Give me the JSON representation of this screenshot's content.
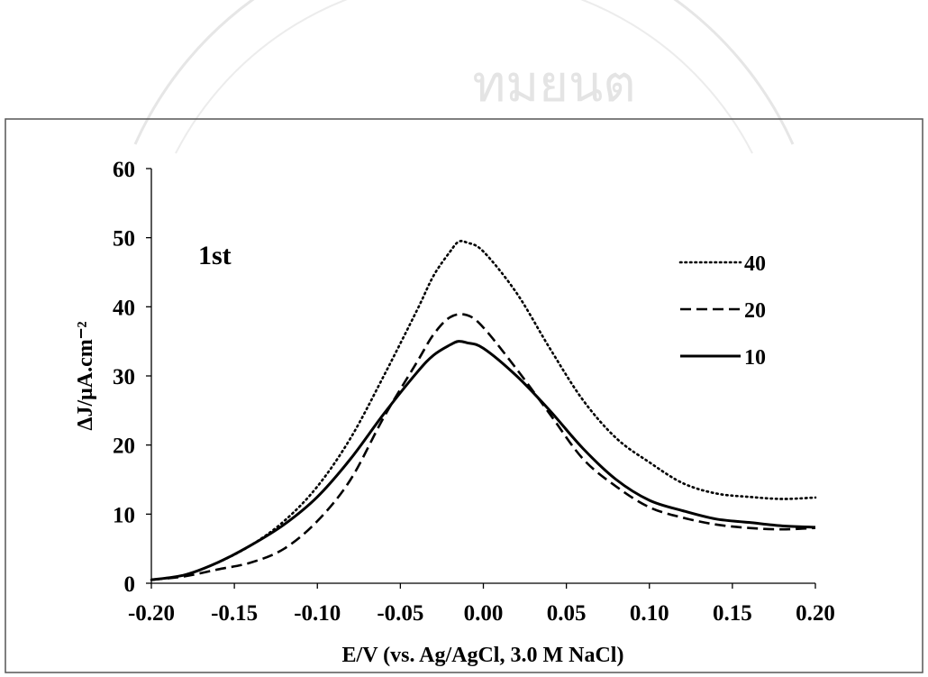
{
  "watermark": {
    "text": "ทมยนต"
  },
  "chart_data": {
    "type": "line",
    "xlabel": "E/V (vs. Ag/AgCl, 3.0 M NaCl)",
    "ylabel": "ΔJ/μA.cm⁻²",
    "xlim": [
      -0.2,
      0.2
    ],
    "ylim": [
      0,
      60
    ],
    "x_ticks": [
      "-0.20",
      "-0.15",
      "-0.10",
      "-0.05",
      "0.00",
      "0.05",
      "0.10",
      "0.15",
      "0.20"
    ],
    "y_ticks": [
      "0",
      "10",
      "20",
      "30",
      "40",
      "50",
      "60"
    ],
    "grid": false,
    "legend_position": "top-right",
    "annotation": "1st",
    "series": [
      {
        "name": "40",
        "style": "dotted",
        "points": [
          [
            -0.2,
            0.5
          ],
          [
            -0.18,
            1.2
          ],
          [
            -0.16,
            3.0
          ],
          [
            -0.14,
            5.5
          ],
          [
            -0.12,
            9.0
          ],
          [
            -0.1,
            14.0
          ],
          [
            -0.08,
            21.0
          ],
          [
            -0.06,
            30.0
          ],
          [
            -0.04,
            39.5
          ],
          [
            -0.03,
            44.5
          ],
          [
            -0.02,
            48.0
          ],
          [
            -0.015,
            49.4
          ],
          [
            -0.01,
            49.3
          ],
          [
            0.0,
            48.0
          ],
          [
            0.02,
            42.0
          ],
          [
            0.04,
            34.0
          ],
          [
            0.06,
            26.5
          ],
          [
            0.08,
            21.0
          ],
          [
            0.1,
            17.5
          ],
          [
            0.12,
            14.5
          ],
          [
            0.14,
            13.0
          ],
          [
            0.16,
            12.5
          ],
          [
            0.18,
            12.2
          ],
          [
            0.2,
            12.4
          ]
        ]
      },
      {
        "name": "20",
        "style": "dashed",
        "points": [
          [
            -0.2,
            0.5
          ],
          [
            -0.18,
            1.0
          ],
          [
            -0.16,
            2.0
          ],
          [
            -0.14,
            3.0
          ],
          [
            -0.12,
            5.0
          ],
          [
            -0.1,
            9.0
          ],
          [
            -0.08,
            15.0
          ],
          [
            -0.06,
            24.0
          ],
          [
            -0.04,
            32.0
          ],
          [
            -0.03,
            36.0
          ],
          [
            -0.02,
            38.5
          ],
          [
            -0.01,
            38.8
          ],
          [
            0.0,
            37.0
          ],
          [
            0.02,
            31.0
          ],
          [
            0.04,
            24.5
          ],
          [
            0.06,
            18.0
          ],
          [
            0.08,
            14.0
          ],
          [
            0.1,
            11.0
          ],
          [
            0.12,
            9.5
          ],
          [
            0.14,
            8.5
          ],
          [
            0.16,
            8.0
          ],
          [
            0.18,
            7.8
          ],
          [
            0.2,
            8.0
          ]
        ]
      },
      {
        "name": "10",
        "style": "solid",
        "points": [
          [
            -0.2,
            0.5
          ],
          [
            -0.18,
            1.2
          ],
          [
            -0.16,
            3.0
          ],
          [
            -0.14,
            5.5
          ],
          [
            -0.12,
            8.5
          ],
          [
            -0.1,
            12.5
          ],
          [
            -0.08,
            18.0
          ],
          [
            -0.06,
            24.5
          ],
          [
            -0.04,
            30.5
          ],
          [
            -0.03,
            33.0
          ],
          [
            -0.02,
            34.5
          ],
          [
            -0.015,
            35.0
          ],
          [
            -0.01,
            34.8
          ],
          [
            0.0,
            34.0
          ],
          [
            0.02,
            30.0
          ],
          [
            0.04,
            25.0
          ],
          [
            0.06,
            19.5
          ],
          [
            0.08,
            15.0
          ],
          [
            0.1,
            12.0
          ],
          [
            0.12,
            10.5
          ],
          [
            0.14,
            9.3
          ],
          [
            0.16,
            8.8
          ],
          [
            0.18,
            8.3
          ],
          [
            0.2,
            8.1
          ]
        ]
      }
    ]
  }
}
